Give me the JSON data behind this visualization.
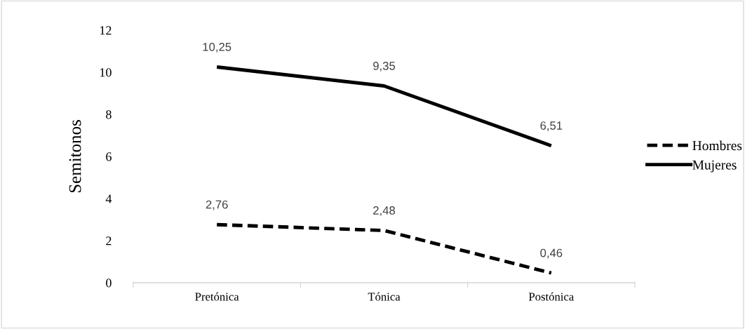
{
  "chart_data": {
    "type": "line",
    "ylabel": "Semitonos",
    "categories": [
      "Pretónica",
      "Tónica",
      "Postónica"
    ],
    "series": [
      {
        "name": "Hombres",
        "color": "#000000",
        "line_style": "dashed",
        "values": [
          2.76,
          2.48,
          0.46
        ],
        "value_labels": [
          "2,76",
          "2,48",
          "0,46"
        ]
      },
      {
        "name": "Mujeres",
        "color": "#000000",
        "line_style": "solid",
        "values": [
          10.25,
          9.35,
          6.51
        ],
        "value_labels": [
          "10,25",
          "9,35",
          "6,51"
        ]
      }
    ],
    "ylim": [
      0,
      12
    ],
    "yticks": [
      0,
      2,
      4,
      6,
      8,
      10,
      12
    ],
    "grid": false,
    "legend": "right",
    "marker": "none"
  }
}
